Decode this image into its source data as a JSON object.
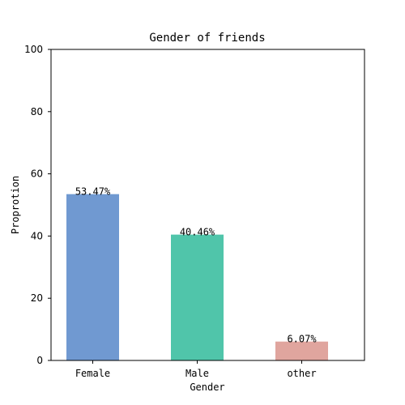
{
  "chart_data": {
    "type": "bar",
    "title": "Gender of friends",
    "xlabel": "Gender",
    "ylabel": "Proprotion",
    "categories": [
      "Female",
      "Male",
      "other"
    ],
    "values": [
      53.47,
      40.46,
      6.07
    ],
    "data_labels": [
      "53.47%",
      "40.46%",
      "6.07%"
    ],
    "bar_colors": [
      "#7099d1",
      "#50c5aa",
      "#e0a59e"
    ],
    "ylim": [
      0,
      100
    ],
    "yticks": [
      0,
      20,
      40,
      60,
      80,
      100
    ],
    "grid": false,
    "legend": "none"
  }
}
